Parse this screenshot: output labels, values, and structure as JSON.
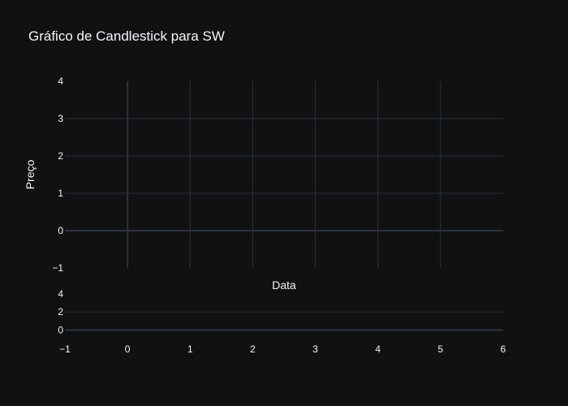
{
  "chart_data": {
    "type": "candlestick",
    "title": "Gráfico de Candlestick para SW",
    "xlabel": "Data",
    "ylabel": "Preço",
    "xlim": [
      -1,
      6
    ],
    "ylim": [
      -1,
      4
    ],
    "x_ticks": [
      -1,
      0,
      1,
      2,
      3,
      4,
      5,
      6
    ],
    "x_tick_labels": [
      "−1",
      "0",
      "1",
      "2",
      "3",
      "4",
      "5",
      "6"
    ],
    "y_ticks": [
      -1,
      0,
      1,
      2,
      3,
      4
    ],
    "y_tick_labels": [
      "−1",
      "0",
      "1",
      "2",
      "3",
      "4"
    ],
    "volume_ylim": [
      -0.5,
      4
    ],
    "volume_y_ticks": [
      0,
      2,
      4
    ],
    "volume_y_tick_labels": [
      "0",
      "2",
      "4"
    ],
    "grid": true,
    "background": "#111111",
    "grid_color": "#283442",
    "text_color": "#f2f5fa",
    "series": []
  }
}
